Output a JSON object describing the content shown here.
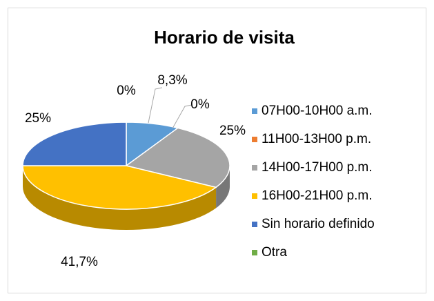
{
  "chart_data": {
    "type": "pie",
    "title": "Horario de visita",
    "categories": [
      "07H00-10H00 a.m.",
      "11H00-13H00 p.m.",
      "14H00-17H00 p.m.",
      "16H00-21H00 p.m.",
      "Sin horario definido",
      "Otra"
    ],
    "values": [
      8.3,
      0,
      25,
      41.7,
      25,
      0
    ],
    "value_labels": [
      "8,3%",
      "0%",
      "25%",
      "41,7%",
      "25%",
      "0%"
    ],
    "colors": [
      "#5b9bd5",
      "#ed7d31",
      "#a5a5a5",
      "#ffc000",
      "#4472c4",
      "#70ad47"
    ],
    "legend": "right"
  }
}
